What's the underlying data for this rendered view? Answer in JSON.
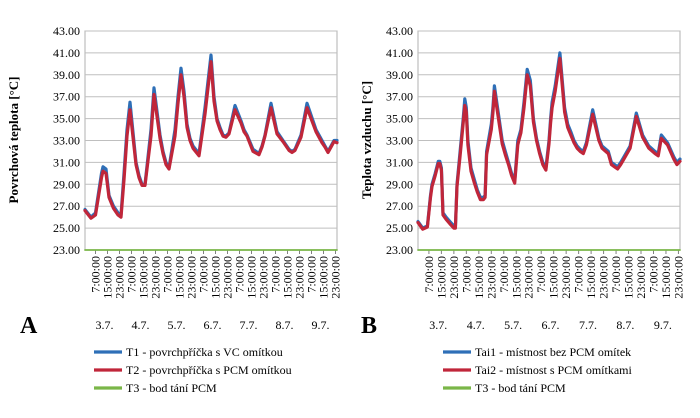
{
  "chart_data": [
    {
      "panel_label": "A",
      "type": "line",
      "ylabel": "Povrchová teplota [°C]",
      "ylim": [
        23,
        43
      ],
      "yticks": [
        "23.00",
        "25.00",
        "27.00",
        "29.00",
        "31.00",
        "33.00",
        "35.00",
        "37.00",
        "39.00",
        "41.00",
        "43.00"
      ],
      "grid": true,
      "legend_position": "bottom",
      "day_labels": [
        "3.7.",
        "4.7.",
        "5.7.",
        "6.7.",
        "7.7.",
        "8.7.",
        "9.7."
      ],
      "time_tick_labels": [
        "7:00:00",
        "15:00:00",
        "23:00:00"
      ],
      "x_unit": "hours since 3.7. 0:00",
      "series": [
        {
          "name": "T1 - povrchpříčka s VC omítkou",
          "color": "#2e6fb7",
          "x": [
            0,
            4,
            7,
            11,
            12,
            14,
            16,
            19,
            22,
            24,
            26,
            28,
            30,
            34,
            36,
            38,
            40,
            44,
            46,
            50,
            52,
            54,
            56,
            60,
            62,
            64,
            66,
            68,
            70,
            72,
            76,
            80,
            84,
            86,
            88,
            90,
            92,
            94,
            96,
            100,
            104,
            106,
            108,
            112,
            116,
            118,
            120,
            124,
            128,
            132,
            134,
            136,
            138,
            140,
            144,
            148,
            154,
            158,
            160,
            162,
            164,
            166,
            168
          ],
          "y": [
            26.7,
            26.0,
            26.4,
            30.0,
            30.6,
            30.4,
            28.0,
            27.0,
            26.4,
            26.2,
            30.0,
            34.0,
            36.5,
            31.0,
            29.8,
            29.0,
            29.0,
            34.0,
            37.8,
            33.5,
            32.0,
            31.0,
            30.5,
            34.0,
            37.0,
            39.6,
            37.5,
            34.5,
            33.2,
            32.5,
            31.8,
            36.0,
            40.8,
            37.0,
            35.0,
            34.2,
            33.5,
            33.4,
            33.7,
            36.2,
            34.8,
            34.0,
            33.5,
            32.2,
            31.8,
            32.5,
            33.5,
            36.4,
            33.8,
            33.0,
            32.6,
            32.2,
            32.0,
            32.2,
            33.5,
            36.4,
            34.0,
            33.0,
            32.5,
            32.0,
            32.5,
            33.0,
            33.0
          ]
        },
        {
          "name": "T2 - povrchpříčka s PCM omítkou",
          "color": "#c0263a",
          "x": [
            0,
            4,
            7,
            11,
            12,
            14,
            16,
            19,
            22,
            24,
            26,
            28,
            30,
            34,
            36,
            38,
            40,
            44,
            46,
            50,
            52,
            54,
            56,
            60,
            62,
            64,
            66,
            68,
            70,
            72,
            76,
            80,
            84,
            86,
            88,
            90,
            92,
            94,
            96,
            100,
            104,
            106,
            108,
            112,
            116,
            118,
            120,
            124,
            128,
            132,
            134,
            136,
            138,
            140,
            144,
            148,
            154,
            158,
            160,
            162,
            164,
            166,
            168
          ],
          "y": [
            26.6,
            25.9,
            26.2,
            29.6,
            30.2,
            30.0,
            27.8,
            26.8,
            26.2,
            26.0,
            29.4,
            33.4,
            35.8,
            30.8,
            29.6,
            28.9,
            28.9,
            33.4,
            37.2,
            33.2,
            31.8,
            30.8,
            30.4,
            33.4,
            36.4,
            39.0,
            37.0,
            34.2,
            33.0,
            32.3,
            31.6,
            35.4,
            40.2,
            36.6,
            34.8,
            34.0,
            33.4,
            33.3,
            33.6,
            35.8,
            34.6,
            33.8,
            33.4,
            32.0,
            31.7,
            32.4,
            33.4,
            36.0,
            33.6,
            32.9,
            32.5,
            32.1,
            31.9,
            32.1,
            33.3,
            36.0,
            33.8,
            32.8,
            32.4,
            31.9,
            32.4,
            32.9,
            32.8
          ]
        },
        {
          "name": "T3 - bod tání PCM",
          "color": "#7ab648",
          "x": [
            0,
            168
          ],
          "y": [
            23,
            23
          ]
        }
      ]
    },
    {
      "panel_label": "B",
      "type": "line",
      "ylabel": "Teplota vzduchu [°C]",
      "ylim": [
        23,
        43
      ],
      "yticks": [
        "23.00",
        "25.00",
        "27.00",
        "29.00",
        "31.00",
        "33.00",
        "35.00",
        "37.00",
        "39.00",
        "41.00",
        "43.00"
      ],
      "grid": true,
      "legend_position": "bottom",
      "day_labels": [
        "3.7.",
        "4.7.",
        "5.7.",
        "6.7.",
        "7.7.",
        "8.7.",
        "9.7."
      ],
      "time_tick_labels": [
        "7:00:00",
        "15:00:00",
        "23:00:00"
      ],
      "x_unit": "hours since 3.7. 0:00",
      "series": [
        {
          "name": "Tai1 - místnost bez PCM omítek",
          "color": "#2e6fb7",
          "x": [
            0,
            3,
            6,
            8,
            9,
            11,
            13,
            14,
            15,
            16,
            18,
            21,
            23,
            24,
            25,
            27,
            29,
            30,
            31,
            32,
            34,
            36,
            38,
            40,
            42,
            43,
            44,
            47,
            48,
            49,
            52,
            54,
            56,
            58,
            60,
            62,
            64,
            65,
            66,
            68,
            70,
            72,
            74,
            76,
            78,
            80,
            82,
            84,
            85,
            86,
            88,
            91,
            94,
            96,
            98,
            100,
            102,
            104,
            106,
            108,
            112,
            116,
            118,
            122,
            124,
            126,
            128,
            130,
            132,
            136,
            140,
            144,
            148,
            152,
            154,
            156,
            160,
            164,
            166,
            168
          ],
          "y": [
            25.6,
            25.0,
            25.2,
            28.0,
            29.0,
            30.0,
            31.1,
            31.1,
            30.5,
            26.4,
            26.0,
            25.5,
            25.2,
            25.1,
            29.0,
            32.0,
            35.0,
            36.8,
            36.0,
            33.0,
            30.5,
            29.5,
            28.5,
            27.8,
            27.8,
            28.0,
            32.0,
            34.5,
            36.0,
            38.0,
            35.0,
            33.0,
            32.0,
            31.0,
            30.0,
            29.3,
            33.0,
            33.5,
            34.0,
            36.5,
            39.5,
            38.5,
            35.0,
            33.2,
            32.0,
            31.0,
            30.5,
            33.0,
            35.0,
            36.5,
            38.0,
            41.0,
            36.0,
            34.5,
            33.8,
            33.0,
            32.5,
            32.2,
            32.0,
            32.8,
            35.8,
            33.2,
            32.5,
            32.0,
            31.0,
            30.8,
            30.6,
            31.0,
            31.5,
            32.5,
            35.5,
            33.5,
            32.5,
            32.0,
            31.8,
            33.5,
            32.8,
            31.5,
            31.0,
            31.3
          ]
        },
        {
          "name": "Tai2 - místnost s PCM omítkami",
          "color": "#c0263a",
          "x": [
            0,
            3,
            6,
            8,
            9,
            11,
            13,
            14,
            15,
            16,
            18,
            21,
            23,
            24,
            25,
            27,
            29,
            30,
            31,
            32,
            34,
            36,
            38,
            40,
            42,
            43,
            44,
            47,
            48,
            49,
            52,
            54,
            56,
            58,
            60,
            62,
            64,
            65,
            66,
            68,
            70,
            72,
            74,
            76,
            78,
            80,
            82,
            84,
            85,
            86,
            88,
            91,
            94,
            96,
            98,
            100,
            102,
            104,
            106,
            108,
            112,
            116,
            118,
            122,
            124,
            126,
            128,
            130,
            132,
            136,
            140,
            144,
            148,
            152,
            154,
            156,
            160,
            164,
            166,
            168
          ],
          "y": [
            25.5,
            24.9,
            25.1,
            27.8,
            28.8,
            29.8,
            30.9,
            30.9,
            30.3,
            26.2,
            25.8,
            25.3,
            25.0,
            25.0,
            28.8,
            31.6,
            34.6,
            36.2,
            35.6,
            32.6,
            30.2,
            29.2,
            28.3,
            27.6,
            27.6,
            27.8,
            31.7,
            34.0,
            35.5,
            37.5,
            34.6,
            32.7,
            31.7,
            30.8,
            29.8,
            29.1,
            32.6,
            33.2,
            33.7,
            36.0,
            39.0,
            38.0,
            34.7,
            33.0,
            31.8,
            30.8,
            30.3,
            32.7,
            34.6,
            36.0,
            37.5,
            40.5,
            35.6,
            34.2,
            33.5,
            32.8,
            32.3,
            32.0,
            31.8,
            32.6,
            35.4,
            33.0,
            32.3,
            31.8,
            30.8,
            30.6,
            30.4,
            30.8,
            31.3,
            32.3,
            35.2,
            33.3,
            32.3,
            31.8,
            31.6,
            33.2,
            32.6,
            31.3,
            30.8,
            31.1
          ]
        },
        {
          "name": "T3 - bod tání PCM",
          "color": "#7ab648",
          "x": [
            0,
            168
          ],
          "y": [
            23,
            23
          ]
        }
      ]
    }
  ]
}
